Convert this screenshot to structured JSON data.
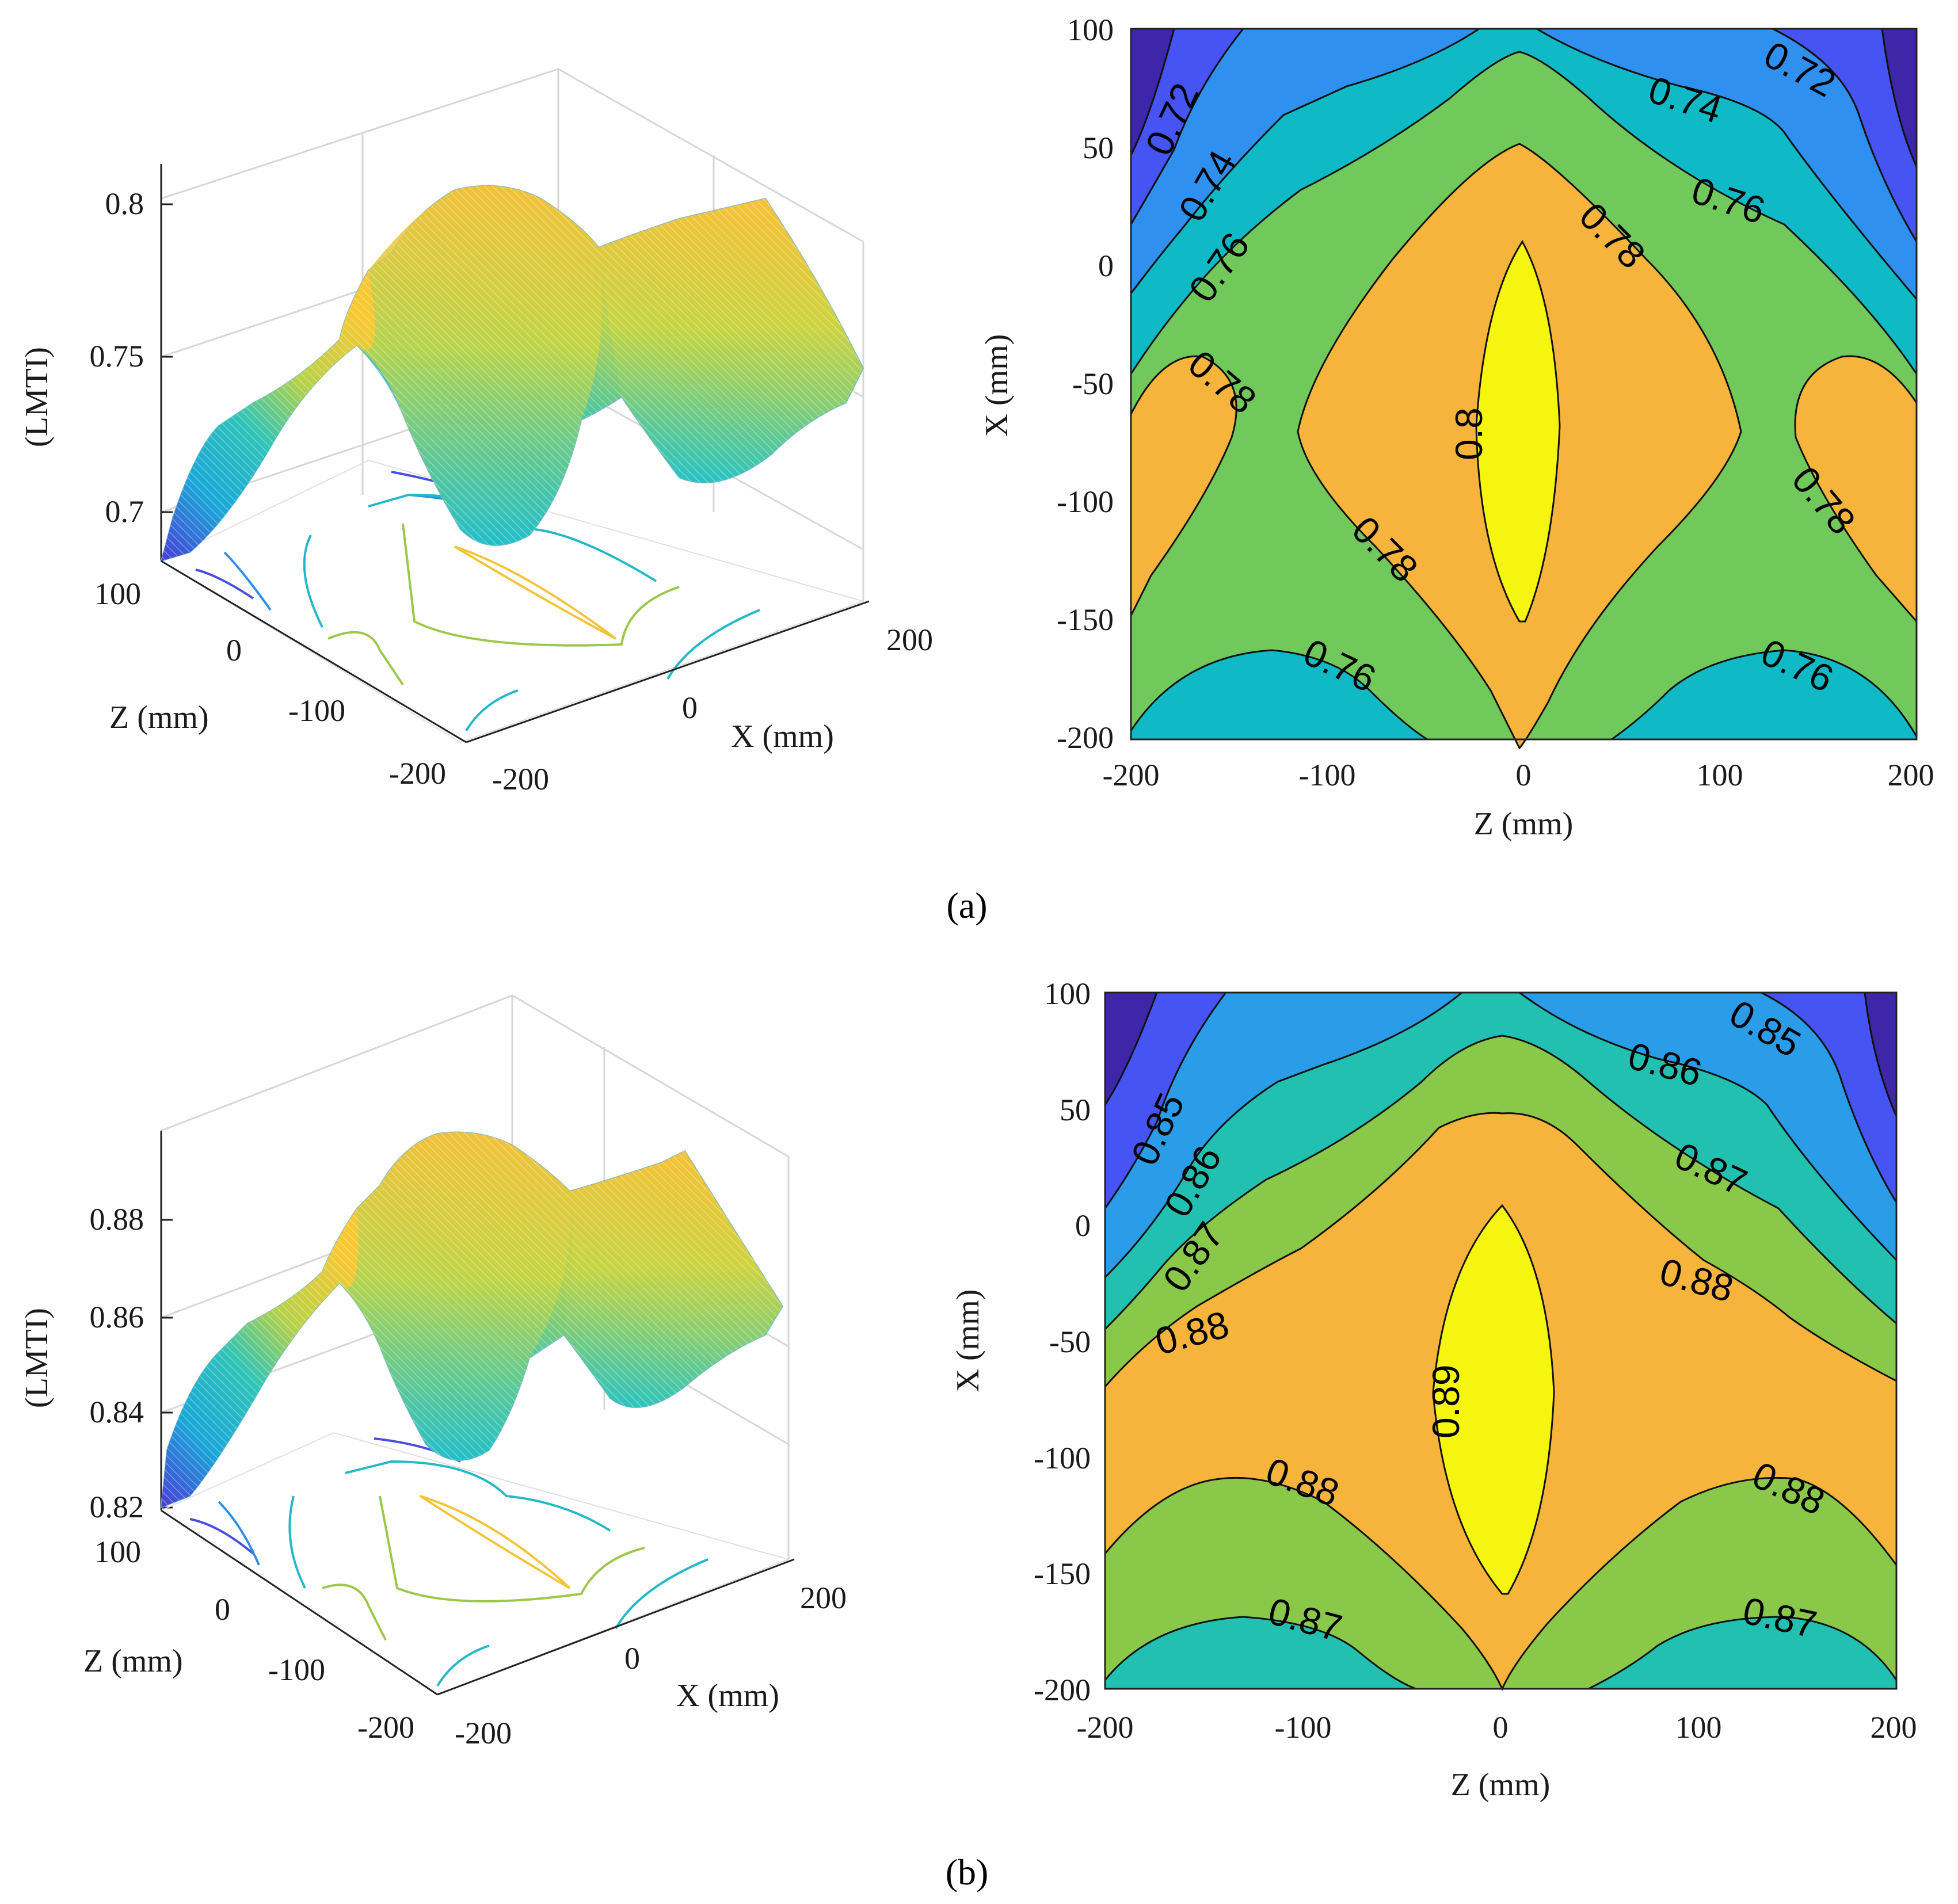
{
  "chart_data": [
    {
      "id": "a-surface",
      "type": "surface3d",
      "panel": "(a)",
      "zlabel": "(LMTI)",
      "xlabel": "X (mm)",
      "ylabel": "Z (mm)",
      "z_ticks": [
        "0.7",
        "0.75",
        "0.8"
      ],
      "zlim": [
        0.69,
        0.81
      ],
      "z_tick_values": [
        0.7,
        0.75,
        0.8
      ],
      "Z_axis_ticks": [
        "100",
        "0",
        "-100",
        "-200"
      ],
      "X_axis_ticks": [
        "-200",
        "0",
        "200"
      ],
      "surface_summary": {
        "min": 0.69,
        "max": 0.805,
        "peak_at": {
          "Z": 0,
          "X": -70
        }
      }
    },
    {
      "id": "a-contour",
      "type": "contour",
      "panel": "(a)",
      "xlabel": "Z (mm)",
      "ylabel": "X (mm)",
      "x_ticks": [
        "-200",
        "-100",
        "0",
        "100",
        "200"
      ],
      "y_ticks": [
        "100",
        "50",
        "0",
        "-50",
        "-100",
        "-150",
        "-200"
      ],
      "xlim": [
        -200,
        200
      ],
      "ylim": [
        -200,
        100
      ],
      "levels": [
        0.72,
        0.74,
        0.76,
        0.78,
        0.8
      ],
      "contour_labels": [
        "0.72",
        "0.72",
        "0.74",
        "0.74",
        "0.76",
        "0.76",
        "0.78",
        "0.78",
        "0.8",
        "0.78",
        "0.78",
        "0.76",
        "0.76"
      ],
      "colors": [
        "#3e26a8",
        "#4554f2",
        "#2f90f0",
        "#10b9c6",
        "#71c95c",
        "#f6b43c",
        "#f6f50f"
      ]
    },
    {
      "id": "b-surface",
      "type": "surface3d",
      "panel": "(b)",
      "zlabel": "(LMTI)",
      "xlabel": "X (mm)",
      "ylabel": "Z (mm)",
      "z_ticks": [
        "0.82",
        "0.84",
        "0.86",
        "0.88"
      ],
      "zlim": [
        0.82,
        0.895
      ],
      "z_tick_values": [
        0.82,
        0.84,
        0.86,
        0.88
      ],
      "Z_axis_ticks": [
        "100",
        "0",
        "-100",
        "-200"
      ],
      "X_axis_ticks": [
        "-200",
        "0",
        "200"
      ],
      "surface_summary": {
        "min": 0.823,
        "max": 0.892,
        "peak_at": {
          "Z": 0,
          "X": -70
        }
      }
    },
    {
      "id": "b-contour",
      "type": "contour",
      "panel": "(b)",
      "xlabel": "Z (mm)",
      "ylabel": "X (mm)",
      "x_ticks": [
        "-200",
        "-100",
        "0",
        "100",
        "200"
      ],
      "y_ticks": [
        "100",
        "50",
        "0",
        "-50",
        "-100",
        "-150",
        "-200"
      ],
      "xlim": [
        -200,
        200
      ],
      "ylim": [
        -200,
        100
      ],
      "levels": [
        0.85,
        0.86,
        0.87,
        0.88,
        0.89
      ],
      "contour_labels": [
        "0.85",
        "0.85",
        "0.86",
        "0.86",
        "0.87",
        "0.87",
        "0.88",
        "0.88",
        "0.89",
        "0.88",
        "0.88",
        "0.87",
        "0.87"
      ],
      "colors": [
        "#3e26a8",
        "#4554f2",
        "#2a9ce8",
        "#22c0b0",
        "#8ac84a",
        "#f6b43c",
        "#f6f50f"
      ]
    }
  ],
  "captions": {
    "a": "(a)",
    "b": "(b)"
  }
}
